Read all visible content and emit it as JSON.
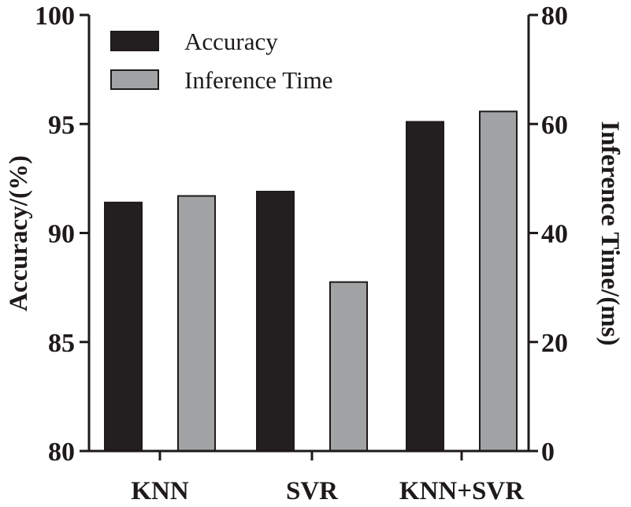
{
  "chart_data": {
    "type": "bar",
    "categories": [
      "KNN",
      "SVR",
      "KNN+SVR"
    ],
    "series": [
      {
        "name": "Accuracy",
        "axis": "left",
        "values": [
          91.4,
          91.9,
          95.1
        ]
      },
      {
        "name": "Inference Time",
        "axis": "right",
        "values": [
          46.8,
          31.0,
          62.3
        ]
      }
    ],
    "y_left": {
      "label": "Accuracy/(%)",
      "lim": [
        80,
        100
      ],
      "ticks": [
        80,
        85,
        90,
        95,
        100
      ]
    },
    "y_right": {
      "label": "Inference Time/(ms)",
      "lim": [
        0,
        80
      ],
      "ticks": [
        0,
        20,
        40,
        60,
        80
      ]
    },
    "legend_position": "top-left",
    "grid": false
  },
  "colors": {
    "accuracy": "#231f20",
    "inference_time": "#a2a3a5",
    "axis": "#1e1a1a"
  }
}
